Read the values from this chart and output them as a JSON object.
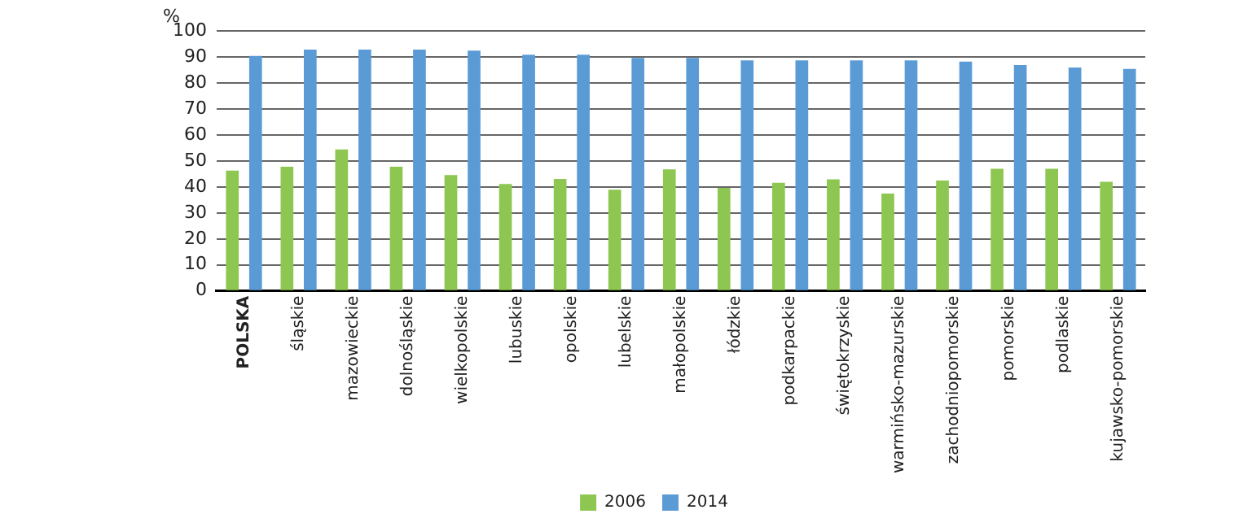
{
  "chart_data": {
    "type": "bar",
    "ylabel": "%",
    "categories": [
      "POLSKA",
      "śląskie",
      "mazowieckie",
      "dolnośląskie",
      "wielkopolskie",
      "lubuskie",
      "opolskie",
      "lubelskie",
      "małopolskie",
      "łódzkie",
      "podkarpackie",
      "świętokrzyskie",
      "warmińsko-mazurskie",
      "zachodniopomorskie",
      "pomorskie",
      "podlaskie",
      "kujawsko-pomorskie"
    ],
    "series": [
      {
        "name": "2006",
        "color": "#8dc751",
        "values": [
          46.3,
          47.8,
          54.5,
          47.8,
          44.6,
          41.2,
          43.1,
          39,
          46.8,
          39.7,
          41.6,
          43,
          37.5,
          42.5,
          47,
          47,
          42
        ]
      },
      {
        "name": "2014",
        "color": "#5b9bd5",
        "values": [
          90.5,
          92.9,
          92.9,
          92.9,
          92.5,
          91,
          91,
          89.7,
          89.7,
          88.8,
          88.8,
          88.8,
          88.8,
          88.3,
          87,
          86,
          85.5
        ]
      }
    ],
    "ylim": [
      0,
      100
    ],
    "yticks": [
      0,
      10,
      20,
      30,
      40,
      50,
      60,
      70,
      80,
      90,
      100
    ],
    "grid": "y",
    "legend": "bottom"
  }
}
